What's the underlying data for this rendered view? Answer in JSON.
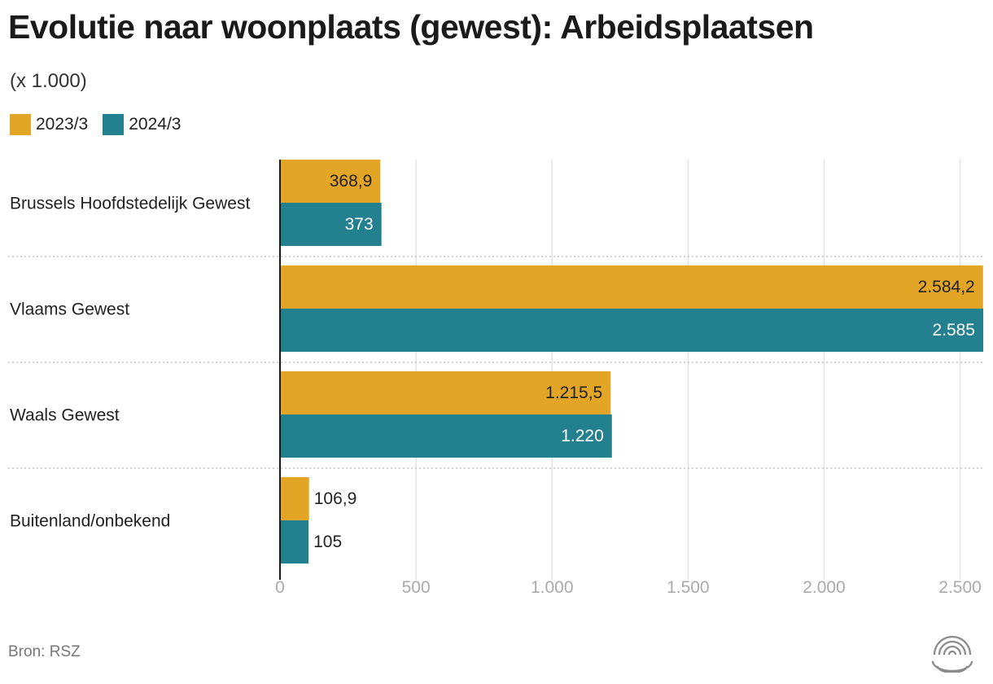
{
  "title": "Evolutie naar woonplaats (gewest): Arbeidsplaatsen",
  "subtitle": "(x 1.000)",
  "source": "Bron: RSZ",
  "colors": {
    "series_2023": "#E2A526",
    "series_2024": "#23808E"
  },
  "legend": [
    {
      "label": "2023/3",
      "color": "#E2A526"
    },
    {
      "label": "2024/3",
      "color": "#23808E"
    }
  ],
  "chart_data": {
    "type": "bar",
    "orientation": "horizontal",
    "categories": [
      "Brussels Hoofdstedelijk Gewest",
      "Vlaams Gewest",
      "Waals Gewest",
      "Buitenland/onbekend"
    ],
    "series": [
      {
        "name": "2023/3",
        "values": [
          368.9,
          2584.2,
          1215.5,
          106.9
        ],
        "labels": [
          "368,9",
          "2.584,2",
          "1.215,5",
          "106,9"
        ]
      },
      {
        "name": "2024/3",
        "values": [
          373,
          2585,
          1220,
          105
        ],
        "labels": [
          "373",
          "2.585",
          "1.220",
          "105"
        ]
      }
    ],
    "xlim": [
      0,
      2585
    ],
    "xticks": [
      0,
      500,
      1000,
      1500,
      2000,
      2500
    ],
    "xtick_labels": [
      "0",
      "500",
      "1.000",
      "1.500",
      "2.000",
      "2.500"
    ],
    "grid": true,
    "legend_position": "top-left"
  }
}
